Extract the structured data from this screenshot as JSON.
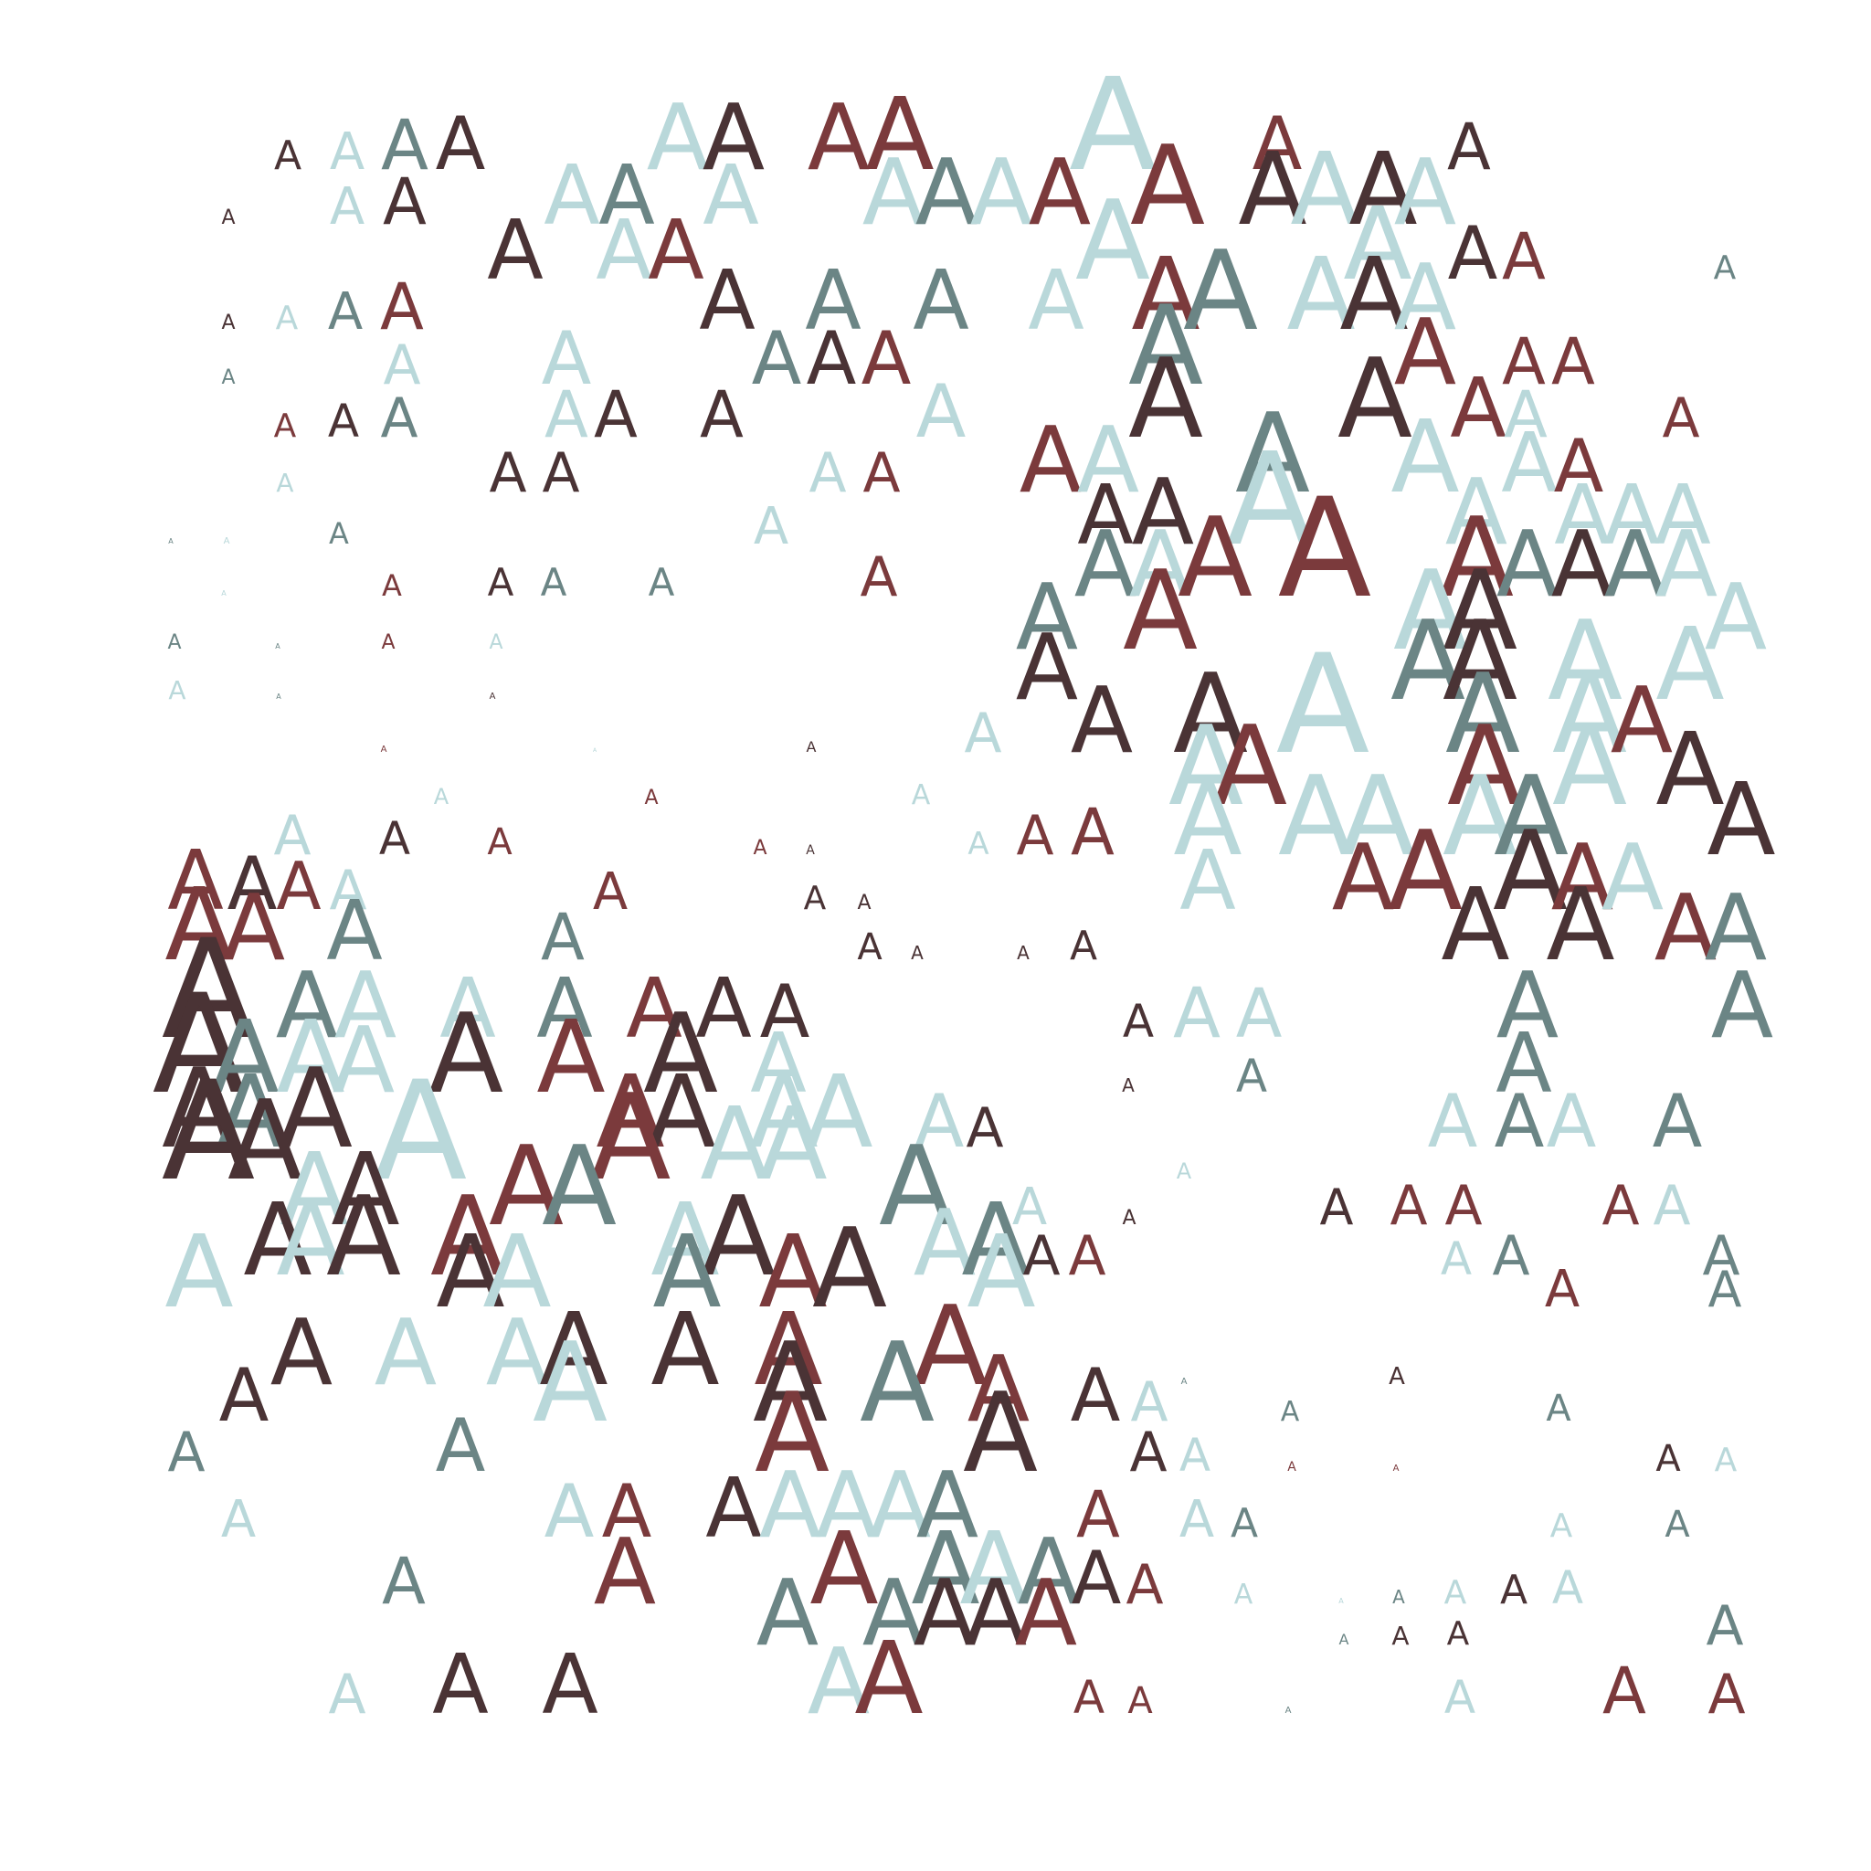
{
  "artwork": {
    "glyph": "A",
    "palette": {
      "dark": "#4a3335",
      "maroon": "#7b3a3c",
      "slate": "#6b8585",
      "pale": "#b9d8da"
    },
    "background": "#ffffff",
    "grid": {
      "cols": 29,
      "rows": 30
    },
    "rows": [
      "...........................",
      "..DmpSD.....pDdmm.d.pmm.mmDD.pDpddD",
      "..D..pD.....mdDppdm.dmmm.mmddp.mDp",
      "......D.......pmm..dmMp.DpDdDD.mD....s",
      "..D.pSm....Dp..dsdD..pdpmp.p.dpp",
      "..s..p.......pD.sdm..pdmp.....pm",
      ".........................."
    ]
  }
}
